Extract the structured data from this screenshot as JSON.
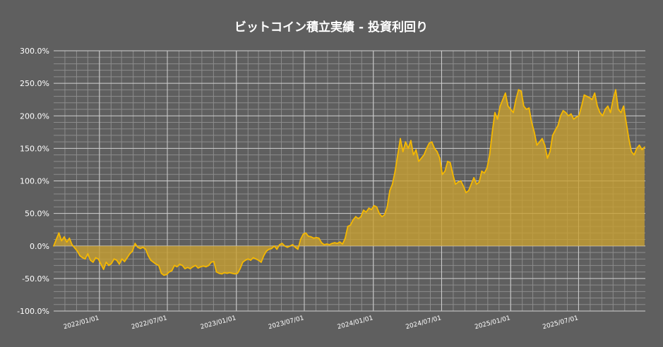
{
  "chart_data": {
    "type": "area",
    "title": "ビットコイン積立実績 - 投資利回り",
    "xlabel": "",
    "ylabel": "",
    "ylim": [
      -100,
      300
    ],
    "y_tick_step": 50,
    "y_tick_labels": [
      "300.0%",
      "250.0%",
      "200.0%",
      "150.0%",
      "100.0%",
      "50.0%",
      "0.0%",
      "-50.0%",
      "-100.0%"
    ],
    "x_range": [
      "2021-09-01",
      "2025-12-26"
    ],
    "x_tick_labels": [
      "2022/01/01",
      "2022/07/01",
      "2023/01/01",
      "2023/07/01",
      "2024/01/01",
      "2024/07/01",
      "2025/01/01",
      "2025/07/01"
    ],
    "x_tick_dates": [
      "2022-01-01",
      "2022-07-01",
      "2023-01-01",
      "2023-07-01",
      "2024-01-01",
      "2024-07-01",
      "2025-01-01",
      "2025-07-01"
    ],
    "grid": true,
    "colors": {
      "background": "#5f5f5f",
      "line": "#f5b800",
      "fill": "#c9a030",
      "grid_major": "#d0d0d0",
      "grid_minor": "#8c8c8c",
      "text": "#ffffff"
    },
    "series": [
      {
        "unit": "%",
        "points": [
          [
            "2021-09-01",
            0
          ],
          [
            "2021-09-08",
            10
          ],
          [
            "2021-09-15",
            20
          ],
          [
            "2021-09-22",
            8
          ],
          [
            "2021-09-29",
            14
          ],
          [
            "2021-10-06",
            6
          ],
          [
            "2021-10-13",
            12
          ],
          [
            "2021-10-20",
            2
          ],
          [
            "2021-10-27",
            -3
          ],
          [
            "2021-11-03",
            -8
          ],
          [
            "2021-11-10",
            -15
          ],
          [
            "2021-11-17",
            -18
          ],
          [
            "2021-11-24",
            -20
          ],
          [
            "2021-12-01",
            -12
          ],
          [
            "2021-12-08",
            -22
          ],
          [
            "2021-12-15",
            -25
          ],
          [
            "2021-12-22",
            -18
          ],
          [
            "2021-12-29",
            -20
          ],
          [
            "2022-01-05",
            -28
          ],
          [
            "2022-01-12",
            -36
          ],
          [
            "2022-01-19",
            -25
          ],
          [
            "2022-01-26",
            -30
          ],
          [
            "2022-02-02",
            -27
          ],
          [
            "2022-02-09",
            -20
          ],
          [
            "2022-02-16",
            -22
          ],
          [
            "2022-02-23",
            -28
          ],
          [
            "2022-03-02",
            -20
          ],
          [
            "2022-03-09",
            -24
          ],
          [
            "2022-03-16",
            -18
          ],
          [
            "2022-03-23",
            -12
          ],
          [
            "2022-03-30",
            -8
          ],
          [
            "2022-04-06",
            4
          ],
          [
            "2022-04-13",
            -2
          ],
          [
            "2022-04-20",
            -4
          ],
          [
            "2022-04-27",
            -2
          ],
          [
            "2022-05-04",
            -5
          ],
          [
            "2022-05-11",
            -15
          ],
          [
            "2022-05-18",
            -22
          ],
          [
            "2022-05-25",
            -25
          ],
          [
            "2022-06-01",
            -28
          ],
          [
            "2022-06-08",
            -30
          ],
          [
            "2022-06-15",
            -42
          ],
          [
            "2022-06-22",
            -45
          ],
          [
            "2022-06-29",
            -44
          ],
          [
            "2022-07-06",
            -40
          ],
          [
            "2022-07-13",
            -38
          ],
          [
            "2022-07-20",
            -30
          ],
          [
            "2022-07-27",
            -32
          ],
          [
            "2022-08-03",
            -28
          ],
          [
            "2022-08-10",
            -30
          ],
          [
            "2022-08-17",
            -35
          ],
          [
            "2022-08-24",
            -33
          ],
          [
            "2022-08-31",
            -35
          ],
          [
            "2022-09-07",
            -32
          ],
          [
            "2022-09-14",
            -30
          ],
          [
            "2022-09-21",
            -34
          ],
          [
            "2022-09-28",
            -32
          ],
          [
            "2022-10-05",
            -31
          ],
          [
            "2022-10-12",
            -32
          ],
          [
            "2022-10-19",
            -30
          ],
          [
            "2022-10-26",
            -25
          ],
          [
            "2022-11-02",
            -24
          ],
          [
            "2022-11-09",
            -40
          ],
          [
            "2022-11-16",
            -42
          ],
          [
            "2022-11-23",
            -43
          ],
          [
            "2022-11-30",
            -41
          ],
          [
            "2022-12-07",
            -42
          ],
          [
            "2022-12-14",
            -41
          ],
          [
            "2022-12-21",
            -42
          ],
          [
            "2022-12-28",
            -43
          ],
          [
            "2023-01-04",
            -42
          ],
          [
            "2023-01-11",
            -35
          ],
          [
            "2023-01-18",
            -25
          ],
          [
            "2023-01-25",
            -22
          ],
          [
            "2023-02-01",
            -20
          ],
          [
            "2023-02-08",
            -22
          ],
          [
            "2023-02-15",
            -18
          ],
          [
            "2023-02-22",
            -20
          ],
          [
            "2023-03-01",
            -22
          ],
          [
            "2023-03-08",
            -25
          ],
          [
            "2023-03-15",
            -15
          ],
          [
            "2023-03-22",
            -8
          ],
          [
            "2023-03-29",
            -5
          ],
          [
            "2023-04-05",
            -4
          ],
          [
            "2023-04-12",
            0
          ],
          [
            "2023-04-19",
            -5
          ],
          [
            "2023-04-26",
            2
          ],
          [
            "2023-05-03",
            4
          ],
          [
            "2023-05-10",
            0
          ],
          [
            "2023-05-17",
            -2
          ],
          [
            "2023-05-24",
            0
          ],
          [
            "2023-05-31",
            2
          ],
          [
            "2023-06-07",
            -2
          ],
          [
            "2023-06-14",
            -5
          ],
          [
            "2023-06-21",
            10
          ],
          [
            "2023-06-28",
            18
          ],
          [
            "2023-07-05",
            20
          ],
          [
            "2023-07-12",
            15
          ],
          [
            "2023-07-19",
            14
          ],
          [
            "2023-07-26",
            12
          ],
          [
            "2023-08-02",
            13
          ],
          [
            "2023-08-09",
            12
          ],
          [
            "2023-08-16",
            5
          ],
          [
            "2023-08-23",
            2
          ],
          [
            "2023-08-30",
            3
          ],
          [
            "2023-09-06",
            2
          ],
          [
            "2023-09-13",
            4
          ],
          [
            "2023-09-20",
            5
          ],
          [
            "2023-09-27",
            4
          ],
          [
            "2023-10-04",
            6
          ],
          [
            "2023-10-11",
            3
          ],
          [
            "2023-10-18",
            12
          ],
          [
            "2023-10-25",
            30
          ],
          [
            "2023-11-01",
            32
          ],
          [
            "2023-11-08",
            40
          ],
          [
            "2023-11-15",
            45
          ],
          [
            "2023-11-22",
            42
          ],
          [
            "2023-11-29",
            45
          ],
          [
            "2023-12-06",
            55
          ],
          [
            "2023-12-13",
            52
          ],
          [
            "2023-12-20",
            58
          ],
          [
            "2023-12-27",
            56
          ],
          [
            "2024-01-03",
            62
          ],
          [
            "2024-01-10",
            60
          ],
          [
            "2024-01-17",
            50
          ],
          [
            "2024-01-24",
            45
          ],
          [
            "2024-01-31",
            48
          ],
          [
            "2024-02-07",
            60
          ],
          [
            "2024-02-14",
            85
          ],
          [
            "2024-02-21",
            95
          ],
          [
            "2024-02-28",
            115
          ],
          [
            "2024-03-06",
            140
          ],
          [
            "2024-03-13",
            165
          ],
          [
            "2024-03-20",
            145
          ],
          [
            "2024-03-27",
            160
          ],
          [
            "2024-04-03",
            150
          ],
          [
            "2024-04-10",
            162
          ],
          [
            "2024-04-17",
            140
          ],
          [
            "2024-04-24",
            148
          ],
          [
            "2024-05-01",
            130
          ],
          [
            "2024-05-08",
            135
          ],
          [
            "2024-05-15",
            140
          ],
          [
            "2024-05-22",
            150
          ],
          [
            "2024-05-29",
            158
          ],
          [
            "2024-06-05",
            160
          ],
          [
            "2024-06-12",
            150
          ],
          [
            "2024-06-19",
            145
          ],
          [
            "2024-06-26",
            135
          ],
          [
            "2024-07-03",
            110
          ],
          [
            "2024-07-10",
            115
          ],
          [
            "2024-07-17",
            130
          ],
          [
            "2024-07-24",
            128
          ],
          [
            "2024-07-31",
            110
          ],
          [
            "2024-08-07",
            95
          ],
          [
            "2024-08-14",
            98
          ],
          [
            "2024-08-21",
            100
          ],
          [
            "2024-08-28",
            92
          ],
          [
            "2024-09-04",
            82
          ],
          [
            "2024-09-11",
            85
          ],
          [
            "2024-09-18",
            95
          ],
          [
            "2024-09-25",
            105
          ],
          [
            "2024-10-02",
            95
          ],
          [
            "2024-10-09",
            98
          ],
          [
            "2024-10-16",
            115
          ],
          [
            "2024-10-23",
            112
          ],
          [
            "2024-10-30",
            120
          ],
          [
            "2024-11-06",
            140
          ],
          [
            "2024-11-13",
            175
          ],
          [
            "2024-11-20",
            205
          ],
          [
            "2024-11-27",
            195
          ],
          [
            "2024-12-04",
            215
          ],
          [
            "2024-12-11",
            225
          ],
          [
            "2024-12-18",
            235
          ],
          [
            "2024-12-25",
            215
          ],
          [
            "2025-01-01",
            210
          ],
          [
            "2025-01-08",
            205
          ],
          [
            "2025-01-15",
            225
          ],
          [
            "2025-01-22",
            240
          ],
          [
            "2025-01-29",
            238
          ],
          [
            "2025-02-05",
            215
          ],
          [
            "2025-02-12",
            210
          ],
          [
            "2025-02-19",
            212
          ],
          [
            "2025-02-26",
            190
          ],
          [
            "2025-03-05",
            175
          ],
          [
            "2025-03-12",
            155
          ],
          [
            "2025-03-19",
            160
          ],
          [
            "2025-03-26",
            165
          ],
          [
            "2025-04-02",
            155
          ],
          [
            "2025-04-09",
            135
          ],
          [
            "2025-04-16",
            145
          ],
          [
            "2025-04-23",
            170
          ],
          [
            "2025-04-30",
            178
          ],
          [
            "2025-05-07",
            185
          ],
          [
            "2025-05-14",
            200
          ],
          [
            "2025-05-21",
            208
          ],
          [
            "2025-05-28",
            205
          ],
          [
            "2025-06-04",
            200
          ],
          [
            "2025-06-11",
            203
          ],
          [
            "2025-06-18",
            195
          ],
          [
            "2025-06-25",
            198
          ],
          [
            "2025-07-02",
            200
          ],
          [
            "2025-07-09",
            215
          ],
          [
            "2025-07-16",
            232
          ],
          [
            "2025-07-23",
            230
          ],
          [
            "2025-07-30",
            228
          ],
          [
            "2025-08-06",
            225
          ],
          [
            "2025-08-13",
            235
          ],
          [
            "2025-08-20",
            215
          ],
          [
            "2025-08-27",
            205
          ],
          [
            "2025-09-03",
            200
          ],
          [
            "2025-09-10",
            210
          ],
          [
            "2025-09-17",
            215
          ],
          [
            "2025-09-24",
            205
          ],
          [
            "2025-10-01",
            225
          ],
          [
            "2025-10-08",
            240
          ],
          [
            "2025-10-15",
            210
          ],
          [
            "2025-10-22",
            205
          ],
          [
            "2025-10-29",
            215
          ],
          [
            "2025-11-05",
            190
          ],
          [
            "2025-11-12",
            165
          ],
          [
            "2025-11-19",
            145
          ],
          [
            "2025-11-26",
            140
          ],
          [
            "2025-12-03",
            150
          ],
          [
            "2025-12-10",
            155
          ],
          [
            "2025-12-17",
            148
          ],
          [
            "2025-12-24",
            152
          ]
        ]
      }
    ]
  }
}
